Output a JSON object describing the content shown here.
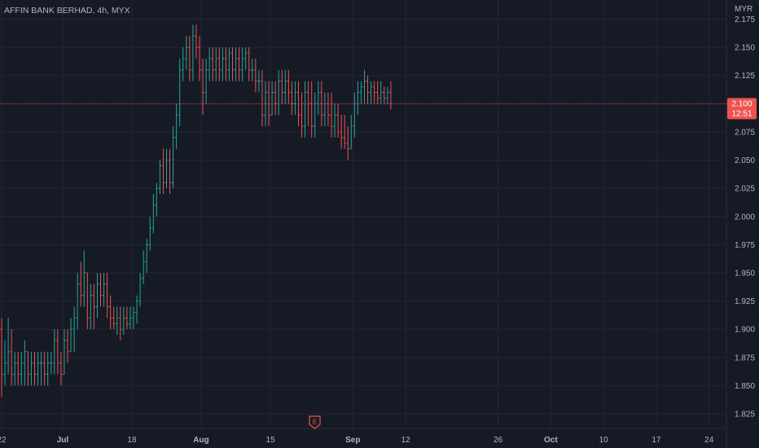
{
  "header": {
    "title": "AFFIN BANK BERHAD, 4h, MYX",
    "currency": "MYR"
  },
  "price_label": {
    "price": "2.100",
    "countdown": "12:51"
  },
  "event_marker": {
    "label": "E",
    "icon": "earnings-icon"
  },
  "colors": {
    "background": "#161a25",
    "grid": "#232734",
    "text": "#b2b5be",
    "up": "#26a69a",
    "down": "#ef5350",
    "price_line": "#ef5350"
  },
  "chart_data": {
    "type": "ohlc",
    "title": "AFFIN BANK BERHAD, 4h, MYX",
    "ylabel": "MYR",
    "ylim": [
      1.812,
      2.192
    ],
    "grid": true,
    "y_ticks": [
      "1.825",
      "1.850",
      "1.875",
      "1.900",
      "1.925",
      "1.950",
      "1.975",
      "2.000",
      "2.025",
      "2.050",
      "2.075",
      "2.100",
      "2.125",
      "2.150",
      "2.175"
    ],
    "x_ticks": [
      {
        "label": "22",
        "bold": false,
        "bar": 0
      },
      {
        "label": "Jul",
        "bold": true,
        "bar": 18.5
      },
      {
        "label": "18",
        "bold": false,
        "bar": 39.5
      },
      {
        "label": "Aug",
        "bold": true,
        "bar": 60.5
      },
      {
        "label": "15",
        "bold": false,
        "bar": 81.5
      },
      {
        "label": "Sep",
        "bold": true,
        "bar": 106.5
      },
      {
        "label": "12",
        "bold": false,
        "bar": 122.5
      },
      {
        "label": "26",
        "bold": false,
        "bar": 150.5
      },
      {
        "label": "Oct",
        "bold": true,
        "bar": 166.5
      },
      {
        "label": "10",
        "bold": false,
        "bar": 182.5
      },
      {
        "label": "17",
        "bold": false,
        "bar": 198.5
      },
      {
        "label": "24",
        "bold": false,
        "bar": 214.5
      }
    ],
    "last_price": 2.1,
    "bars": [
      [
        1.9,
        1.91,
        1.84,
        1.86
      ],
      [
        1.86,
        1.89,
        1.85,
        1.87
      ],
      [
        1.87,
        1.91,
        1.86,
        1.88
      ],
      [
        1.88,
        1.9,
        1.85,
        1.86
      ],
      [
        1.86,
        1.88,
        1.85,
        1.87
      ],
      [
        1.87,
        1.88,
        1.85,
        1.86
      ],
      [
        1.86,
        1.88,
        1.85,
        1.87
      ],
      [
        1.87,
        1.89,
        1.85,
        1.88
      ],
      [
        1.88,
        1.88,
        1.85,
        1.86
      ],
      [
        1.86,
        1.88,
        1.85,
        1.87
      ],
      [
        1.87,
        1.88,
        1.85,
        1.86
      ],
      [
        1.86,
        1.88,
        1.85,
        1.87
      ],
      [
        1.87,
        1.88,
        1.85,
        1.87
      ],
      [
        1.87,
        1.88,
        1.85,
        1.86
      ],
      [
        1.86,
        1.88,
        1.85,
        1.87
      ],
      [
        1.87,
        1.88,
        1.86,
        1.87
      ],
      [
        1.87,
        1.9,
        1.86,
        1.89
      ],
      [
        1.89,
        1.9,
        1.86,
        1.87
      ],
      [
        1.87,
        1.88,
        1.85,
        1.86
      ],
      [
        1.86,
        1.9,
        1.86,
        1.89
      ],
      [
        1.89,
        1.9,
        1.87,
        1.88
      ],
      [
        1.88,
        1.91,
        1.88,
        1.9
      ],
      [
        1.9,
        1.92,
        1.88,
        1.91
      ],
      [
        1.91,
        1.95,
        1.9,
        1.94
      ],
      [
        1.94,
        1.96,
        1.92,
        1.93
      ],
      [
        1.93,
        1.97,
        1.92,
        1.95
      ],
      [
        1.95,
        1.95,
        1.9,
        1.91
      ],
      [
        1.91,
        1.94,
        1.9,
        1.93
      ],
      [
        1.93,
        1.94,
        1.9,
        1.92
      ],
      [
        1.92,
        1.95,
        1.91,
        1.94
      ],
      [
        1.94,
        1.95,
        1.92,
        1.93
      ],
      [
        1.93,
        1.95,
        1.92,
        1.94
      ],
      [
        1.94,
        1.95,
        1.91,
        1.92
      ],
      [
        1.92,
        1.93,
        1.9,
        1.91
      ],
      [
        1.91,
        1.92,
        1.9,
        1.905
      ],
      [
        1.905,
        1.92,
        1.895,
        1.91
      ],
      [
        1.91,
        1.92,
        1.89,
        1.9
      ],
      [
        1.9,
        1.92,
        1.895,
        1.91
      ],
      [
        1.91,
        1.92,
        1.9,
        1.905
      ],
      [
        1.905,
        1.92,
        1.9,
        1.91
      ],
      [
        1.91,
        1.92,
        1.9,
        1.915
      ],
      [
        1.915,
        1.93,
        1.905,
        1.925
      ],
      [
        1.925,
        1.95,
        1.92,
        1.945
      ],
      [
        1.945,
        1.97,
        1.94,
        1.96
      ],
      [
        1.96,
        1.98,
        1.95,
        1.975
      ],
      [
        1.975,
        2.0,
        1.97,
        1.99
      ],
      [
        1.99,
        2.02,
        1.985,
        2.01
      ],
      [
        2.01,
        2.03,
        2.0,
        2.025
      ],
      [
        2.025,
        2.05,
        2.02,
        2.045
      ],
      [
        2.045,
        2.06,
        2.02,
        2.03
      ],
      [
        2.03,
        2.06,
        2.025,
        2.05
      ],
      [
        2.05,
        2.06,
        2.02,
        2.03
      ],
      [
        2.03,
        2.08,
        2.025,
        2.07
      ],
      [
        2.07,
        2.1,
        2.06,
        2.09
      ],
      [
        2.09,
        2.14,
        2.08,
        2.13
      ],
      [
        2.13,
        2.15,
        2.12,
        2.14
      ],
      [
        2.14,
        2.16,
        2.13,
        2.15
      ],
      [
        2.15,
        2.16,
        2.12,
        2.13
      ],
      [
        2.13,
        2.17,
        2.12,
        2.16
      ],
      [
        2.16,
        2.17,
        2.14,
        2.15
      ],
      [
        2.15,
        2.16,
        2.12,
        2.13
      ],
      [
        2.13,
        2.14,
        2.09,
        2.11
      ],
      [
        2.11,
        2.14,
        2.1,
        2.13
      ],
      [
        2.13,
        2.15,
        2.12,
        2.14
      ],
      [
        2.14,
        2.15,
        2.12,
        2.13
      ],
      [
        2.13,
        2.15,
        2.12,
        2.14
      ],
      [
        2.14,
        2.15,
        2.12,
        2.13
      ],
      [
        2.13,
        2.15,
        2.12,
        2.14
      ],
      [
        2.14,
        2.15,
        2.12,
        2.13
      ],
      [
        2.13,
        2.15,
        2.12,
        2.145
      ],
      [
        2.145,
        2.15,
        2.12,
        2.13
      ],
      [
        2.13,
        2.15,
        2.12,
        2.14
      ],
      [
        2.14,
        2.15,
        2.12,
        2.13
      ],
      [
        2.13,
        2.15,
        2.12,
        2.14
      ],
      [
        2.14,
        2.15,
        2.13,
        2.145
      ],
      [
        2.145,
        2.15,
        2.12,
        2.13
      ],
      [
        2.13,
        2.14,
        2.12,
        2.13
      ],
      [
        2.13,
        2.14,
        2.11,
        2.12
      ],
      [
        2.12,
        2.13,
        2.11,
        2.12
      ],
      [
        2.12,
        2.13,
        2.08,
        2.09
      ],
      [
        2.09,
        2.12,
        2.08,
        2.11
      ],
      [
        2.11,
        2.12,
        2.08,
        2.09
      ],
      [
        2.09,
        2.12,
        2.09,
        2.11
      ],
      [
        2.11,
        2.12,
        2.09,
        2.1
      ],
      [
        2.1,
        2.13,
        2.09,
        2.12
      ],
      [
        2.12,
        2.13,
        2.1,
        2.11
      ],
      [
        2.11,
        2.13,
        2.1,
        2.12
      ],
      [
        2.12,
        2.13,
        2.1,
        2.11
      ],
      [
        2.11,
        2.12,
        2.09,
        2.1
      ],
      [
        2.1,
        2.12,
        2.09,
        2.11
      ],
      [
        2.11,
        2.12,
        2.08,
        2.09
      ],
      [
        2.09,
        2.11,
        2.07,
        2.08
      ],
      [
        2.08,
        2.12,
        2.07,
        2.11
      ],
      [
        2.11,
        2.12,
        2.08,
        2.1
      ],
      [
        2.1,
        2.12,
        2.07,
        2.08
      ],
      [
        2.08,
        2.11,
        2.07,
        2.1
      ],
      [
        2.1,
        2.12,
        2.09,
        2.11
      ],
      [
        2.11,
        2.12,
        2.08,
        2.09
      ],
      [
        2.09,
        2.11,
        2.08,
        2.1
      ],
      [
        2.1,
        2.11,
        2.08,
        2.09
      ],
      [
        2.09,
        2.11,
        2.07,
        2.08
      ],
      [
        2.08,
        2.1,
        2.07,
        2.09
      ],
      [
        2.09,
        2.1,
        2.07,
        2.075
      ],
      [
        2.075,
        2.09,
        2.06,
        2.07
      ],
      [
        2.07,
        2.09,
        2.06,
        2.065
      ],
      [
        2.065,
        2.08,
        2.05,
        2.06
      ],
      [
        2.06,
        2.09,
        2.06,
        2.08
      ],
      [
        2.08,
        2.11,
        2.07,
        2.1
      ],
      [
        2.1,
        2.12,
        2.09,
        2.11
      ],
      [
        2.11,
        2.12,
        2.1,
        2.115
      ],
      [
        2.115,
        2.13,
        2.1,
        2.12
      ],
      [
        2.12,
        2.125,
        2.1,
        2.11
      ],
      [
        2.11,
        2.12,
        2.1,
        2.115
      ],
      [
        2.115,
        2.12,
        2.1,
        2.11
      ],
      [
        2.11,
        2.12,
        2.1,
        2.105
      ],
      [
        2.105,
        2.12,
        2.1,
        2.11
      ],
      [
        2.11,
        2.115,
        2.1,
        2.105
      ],
      [
        2.105,
        2.115,
        2.1,
        2.11
      ],
      [
        2.11,
        2.12,
        2.095,
        2.1
      ]
    ]
  }
}
